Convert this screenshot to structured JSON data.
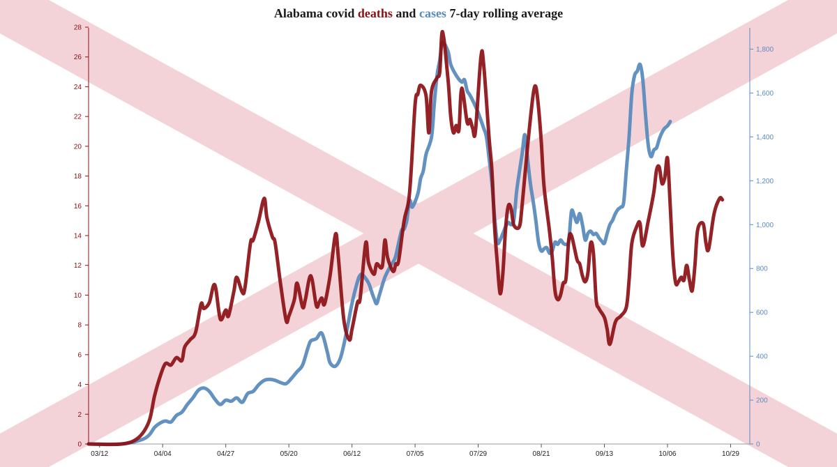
{
  "colors": {
    "deaths": "#8b1015",
    "cases": "#5b8bbd",
    "flag_cross": "#f4d3d8",
    "title_text": "#1a1a1a"
  },
  "title": {
    "part1": "Alabama covid ",
    "deaths_word": "deaths",
    "and_word": " and ",
    "cases_word": "cases",
    "part2": " 7-day rolling average"
  },
  "chart_data": {
    "type": "line",
    "title": "Alabama covid deaths and cases 7-day rolling average",
    "background": "Alabama state flag (red saltire on white)",
    "x_tick_labels": [
      "03/12",
      "04/04",
      "04/27",
      "05/20",
      "06/12",
      "07/05",
      "07/29",
      "08/21",
      "09/13",
      "10/06",
      "10/29"
    ],
    "x_tick_day_index": [
      0,
      23,
      46,
      69,
      92,
      115,
      138,
      161,
      184,
      207,
      230
    ],
    "x_range_day_index": [
      -4,
      237
    ],
    "left_axis": {
      "series": "deaths",
      "range": [
        0,
        28
      ],
      "ticks": [
        0,
        2,
        4,
        6,
        8,
        10,
        12,
        14,
        16,
        18,
        20,
        22,
        24,
        26,
        28
      ]
    },
    "right_axis": {
      "series": "cases",
      "range": [
        0,
        1900
      ],
      "ticks": [
        0,
        200,
        400,
        600,
        800,
        1000,
        1200,
        1400,
        1600,
        1800
      ],
      "tick_labels": [
        "0",
        "200",
        "400",
        "600",
        "800",
        "1,000",
        "1,200",
        "1,400",
        "1,600",
        "1,800"
      ]
    },
    "series": [
      {
        "name": "deaths",
        "axis": "left",
        "points": [
          [
            -4,
            0
          ],
          [
            8,
            0
          ],
          [
            14,
            0.4
          ],
          [
            18,
            1.5
          ],
          [
            20,
            3.2
          ],
          [
            22,
            4.5
          ],
          [
            24,
            5.4
          ],
          [
            26,
            5.3
          ],
          [
            28,
            5.8
          ],
          [
            30,
            5.6
          ],
          [
            31,
            6.5
          ],
          [
            33,
            7.0
          ],
          [
            35,
            7.5
          ],
          [
            37,
            9.4
          ],
          [
            38,
            9.1
          ],
          [
            40,
            9.5
          ],
          [
            42,
            10.7
          ],
          [
            44,
            8.4
          ],
          [
            46,
            9.0
          ],
          [
            47,
            8.6
          ],
          [
            49,
            10.3
          ],
          [
            50,
            11.2
          ],
          [
            52,
            10.2
          ],
          [
            53,
            10.5
          ],
          [
            55,
            13.5
          ],
          [
            56,
            13.7
          ],
          [
            58,
            15.0
          ],
          [
            60,
            16.5
          ],
          [
            61,
            15.2
          ],
          [
            63,
            13.9
          ],
          [
            64,
            13.5
          ],
          [
            66,
            10.7
          ],
          [
            68,
            8.3
          ],
          [
            69,
            8.6
          ],
          [
            71,
            9.7
          ],
          [
            72,
            10.8
          ],
          [
            74,
            9.2
          ],
          [
            75,
            9.7
          ],
          [
            77,
            11.3
          ],
          [
            79,
            9.3
          ],
          [
            80,
            9.5
          ],
          [
            81,
            9.8
          ],
          [
            82,
            9.4
          ],
          [
            84,
            11.3
          ],
          [
            86,
            14.1
          ],
          [
            87,
            12.6
          ],
          [
            89,
            8.4
          ],
          [
            91,
            7.0
          ],
          [
            92,
            7.7
          ],
          [
            94,
            9.5
          ],
          [
            95,
            9.8
          ],
          [
            97,
            13.5
          ],
          [
            98,
            12.2
          ],
          [
            100,
            11.4
          ],
          [
            101,
            12.1
          ],
          [
            103,
            11.9
          ],
          [
            104,
            13.7
          ],
          [
            105,
            12.5
          ],
          [
            107,
            11.6
          ],
          [
            108,
            12.1
          ],
          [
            109,
            12.3
          ],
          [
            111,
            15.0
          ],
          [
            113,
            16.9
          ],
          [
            115,
            22.8
          ],
          [
            116,
            23.5
          ],
          [
            117,
            24.1
          ],
          [
            119,
            23.4
          ],
          [
            120,
            20.9
          ],
          [
            121,
            23.7
          ],
          [
            123,
            24.6
          ],
          [
            124,
            25.0
          ],
          [
            125,
            27.7
          ],
          [
            127,
            24.5
          ],
          [
            128,
            22.0
          ],
          [
            129,
            20.9
          ],
          [
            130,
            21.4
          ],
          [
            131,
            21.1
          ],
          [
            132,
            23.9
          ],
          [
            134,
            21.6
          ],
          [
            135,
            21.8
          ],
          [
            136,
            21.2
          ],
          [
            137,
            21.0
          ],
          [
            139,
            26.0
          ],
          [
            140,
            25.5
          ],
          [
            142,
            20.5
          ],
          [
            143,
            18.4
          ],
          [
            144,
            14.5
          ],
          [
            145,
            12.1
          ],
          [
            146,
            10.1
          ],
          [
            147,
            11.5
          ],
          [
            148,
            14.5
          ],
          [
            149,
            16.0
          ],
          [
            150,
            15.8
          ],
          [
            151,
            14.7
          ],
          [
            153,
            14.6
          ],
          [
            154,
            16.0
          ],
          [
            156,
            20.0
          ],
          [
            158,
            23.4
          ],
          [
            159,
            24.0
          ],
          [
            160,
            22.6
          ],
          [
            161,
            20.3
          ],
          [
            162,
            17.3
          ],
          [
            164,
            14.3
          ],
          [
            165,
            12.5
          ],
          [
            166,
            10.3
          ],
          [
            167,
            9.7
          ],
          [
            168,
            10.0
          ],
          [
            169,
            10.8
          ],
          [
            170,
            11.1
          ],
          [
            171,
            13.7
          ],
          [
            172,
            14.0
          ],
          [
            174,
            12.4
          ],
          [
            175,
            12.1
          ],
          [
            176,
            11.3
          ],
          [
            177,
            10.9
          ],
          [
            178,
            11.5
          ],
          [
            179,
            13.5
          ],
          [
            180,
            12.8
          ],
          [
            181,
            9.7
          ],
          [
            182,
            9.1
          ],
          [
            184,
            8.5
          ],
          [
            185,
            7.7
          ],
          [
            186,
            6.7
          ],
          [
            188,
            8.2
          ],
          [
            190,
            8.6
          ],
          [
            192,
            9.2
          ],
          [
            193,
            11.0
          ],
          [
            194,
            13.5
          ],
          [
            196,
            14.7
          ],
          [
            197,
            14.8
          ],
          [
            198,
            13.3
          ],
          [
            200,
            15.0
          ],
          [
            202,
            16.9
          ],
          [
            203,
            18.4
          ],
          [
            204,
            18.6
          ],
          [
            205,
            17.5
          ],
          [
            206,
            17.9
          ],
          [
            207,
            19.2
          ],
          [
            208,
            16.0
          ],
          [
            209,
            12.5
          ],
          [
            210,
            10.8
          ],
          [
            211,
            10.9
          ],
          [
            212,
            11.2
          ],
          [
            213,
            11.0
          ],
          [
            214,
            12.0
          ],
          [
            215,
            11.0
          ],
          [
            216,
            10.3
          ],
          [
            217,
            12.0
          ],
          [
            218,
            14.4
          ],
          [
            220,
            14.8
          ],
          [
            221,
            13.5
          ],
          [
            222,
            13.1
          ],
          [
            224,
            15.5
          ],
          [
            226,
            16.5
          ],
          [
            227,
            16.4
          ]
        ]
      },
      {
        "name": "cases",
        "axis": "right",
        "points": [
          [
            -4,
            0
          ],
          [
            8,
            0
          ],
          [
            15,
            18
          ],
          [
            18,
            40
          ],
          [
            20,
            75
          ],
          [
            22,
            95
          ],
          [
            24,
            105
          ],
          [
            26,
            100
          ],
          [
            28,
            130
          ],
          [
            30,
            145
          ],
          [
            32,
            180
          ],
          [
            34,
            210
          ],
          [
            36,
            245
          ],
          [
            38,
            255
          ],
          [
            40,
            240
          ],
          [
            42,
            205
          ],
          [
            44,
            180
          ],
          [
            46,
            200
          ],
          [
            48,
            195
          ],
          [
            50,
            210
          ],
          [
            52,
            190
          ],
          [
            54,
            230
          ],
          [
            56,
            240
          ],
          [
            58,
            270
          ],
          [
            60,
            290
          ],
          [
            62,
            295
          ],
          [
            64,
            290
          ],
          [
            66,
            280
          ],
          [
            68,
            275
          ],
          [
            70,
            300
          ],
          [
            72,
            330
          ],
          [
            74,
            360
          ],
          [
            76,
            440
          ],
          [
            77,
            470
          ],
          [
            79,
            480
          ],
          [
            81,
            505
          ],
          [
            83,
            420
          ],
          [
            84,
            370
          ],
          [
            86,
            355
          ],
          [
            88,
            400
          ],
          [
            90,
            510
          ],
          [
            92,
            640
          ],
          [
            94,
            740
          ],
          [
            95,
            770
          ],
          [
            96,
            770
          ],
          [
            98,
            735
          ],
          [
            99,
            700
          ],
          [
            100,
            665
          ],
          [
            101,
            640
          ],
          [
            102,
            680
          ],
          [
            104,
            760
          ],
          [
            106,
            810
          ],
          [
            107,
            830
          ],
          [
            108,
            860
          ],
          [
            110,
            970
          ],
          [
            111,
            980
          ],
          [
            112,
            1020
          ],
          [
            113,
            1110
          ],
          [
            114,
            1080
          ],
          [
            116,
            1140
          ],
          [
            117,
            1210
          ],
          [
            118,
            1245
          ],
          [
            119,
            1320
          ],
          [
            121,
            1400
          ],
          [
            122,
            1550
          ],
          [
            123,
            1680
          ],
          [
            124,
            1750
          ],
          [
            125,
            1830
          ],
          [
            127,
            1790
          ],
          [
            128,
            1730
          ],
          [
            130,
            1680
          ],
          [
            132,
            1650
          ],
          [
            133,
            1660
          ],
          [
            134,
            1610
          ],
          [
            135,
            1590
          ],
          [
            137,
            1540
          ],
          [
            138,
            1510
          ],
          [
            140,
            1440
          ],
          [
            141,
            1400
          ],
          [
            142,
            1300
          ],
          [
            143,
            1190
          ],
          [
            144,
            1030
          ],
          [
            145,
            920
          ],
          [
            146,
            930
          ],
          [
            147,
            960
          ],
          [
            148,
            990
          ],
          [
            149,
            1010
          ],
          [
            150,
            1000
          ],
          [
            151,
            1020
          ],
          [
            152,
            1150
          ],
          [
            153,
            1240
          ],
          [
            154,
            1320
          ],
          [
            155,
            1410
          ],
          [
            156,
            1300
          ],
          [
            157,
            1190
          ],
          [
            158,
            1110
          ],
          [
            159,
            1020
          ],
          [
            160,
            920
          ],
          [
            161,
            880
          ],
          [
            162,
            890
          ],
          [
            163,
            895
          ],
          [
            164,
            870
          ],
          [
            165,
            880
          ],
          [
            166,
            920
          ],
          [
            167,
            910
          ],
          [
            168,
            930
          ],
          [
            169,
            915
          ],
          [
            170,
            910
          ],
          [
            171,
            925
          ],
          [
            172,
            1060
          ],
          [
            173,
            1040
          ],
          [
            174,
            1010
          ],
          [
            175,
            1050
          ],
          [
            176,
            1000
          ],
          [
            177,
            930
          ],
          [
            178,
            960
          ],
          [
            179,
            970
          ],
          [
            180,
            955
          ],
          [
            181,
            960
          ],
          [
            182,
            940
          ],
          [
            183,
            925
          ],
          [
            184,
            915
          ],
          [
            185,
            960
          ],
          [
            186,
            1000
          ],
          [
            187,
            1020
          ],
          [
            188,
            1050
          ],
          [
            189,
            1070
          ],
          [
            190,
            1080
          ],
          [
            191,
            1100
          ],
          [
            192,
            1250
          ],
          [
            193,
            1400
          ],
          [
            194,
            1600
          ],
          [
            195,
            1680
          ],
          [
            196,
            1700
          ],
          [
            197,
            1730
          ],
          [
            198,
            1660
          ],
          [
            199,
            1500
          ],
          [
            200,
            1360
          ],
          [
            201,
            1310
          ],
          [
            202,
            1340
          ],
          [
            203,
            1350
          ],
          [
            204,
            1390
          ],
          [
            205,
            1420
          ],
          [
            206,
            1440
          ],
          [
            207,
            1450
          ],
          [
            208,
            1470
          ]
        ]
      }
    ]
  }
}
